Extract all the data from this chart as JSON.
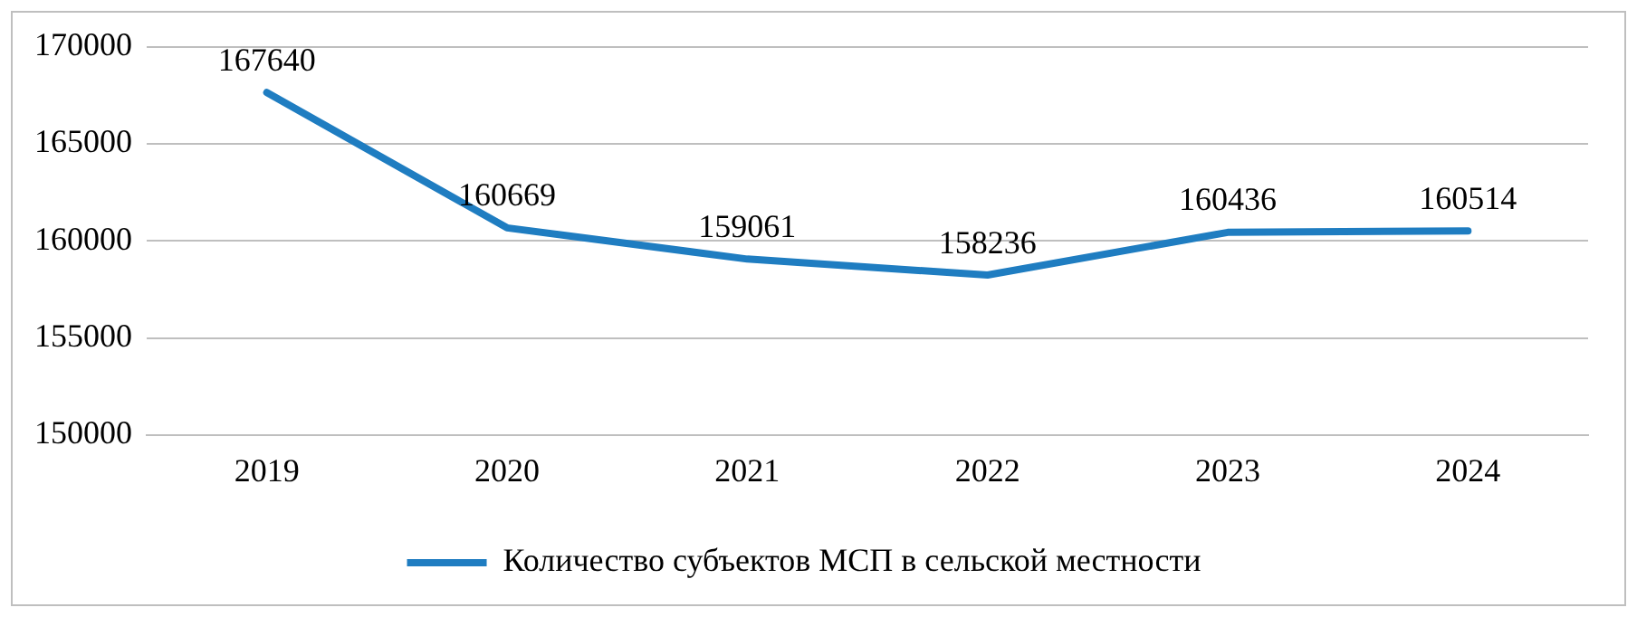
{
  "chart_data": {
    "type": "line",
    "categories": [
      "2019",
      "2020",
      "2021",
      "2022",
      "2023",
      "2024"
    ],
    "series": [
      {
        "name": "Количество субъектов МСП в сельской местности",
        "color": "#1f7dc1",
        "values": [
          167640,
          160669,
          159061,
          158236,
          160436,
          160514
        ]
      }
    ],
    "ylim": [
      150000,
      170000
    ],
    "yticks": [
      150000,
      155000,
      160000,
      165000,
      170000
    ],
    "grid": "y",
    "legend": "bottom",
    "data_labels": true,
    "marker": "none",
    "line_style": "solid"
  }
}
